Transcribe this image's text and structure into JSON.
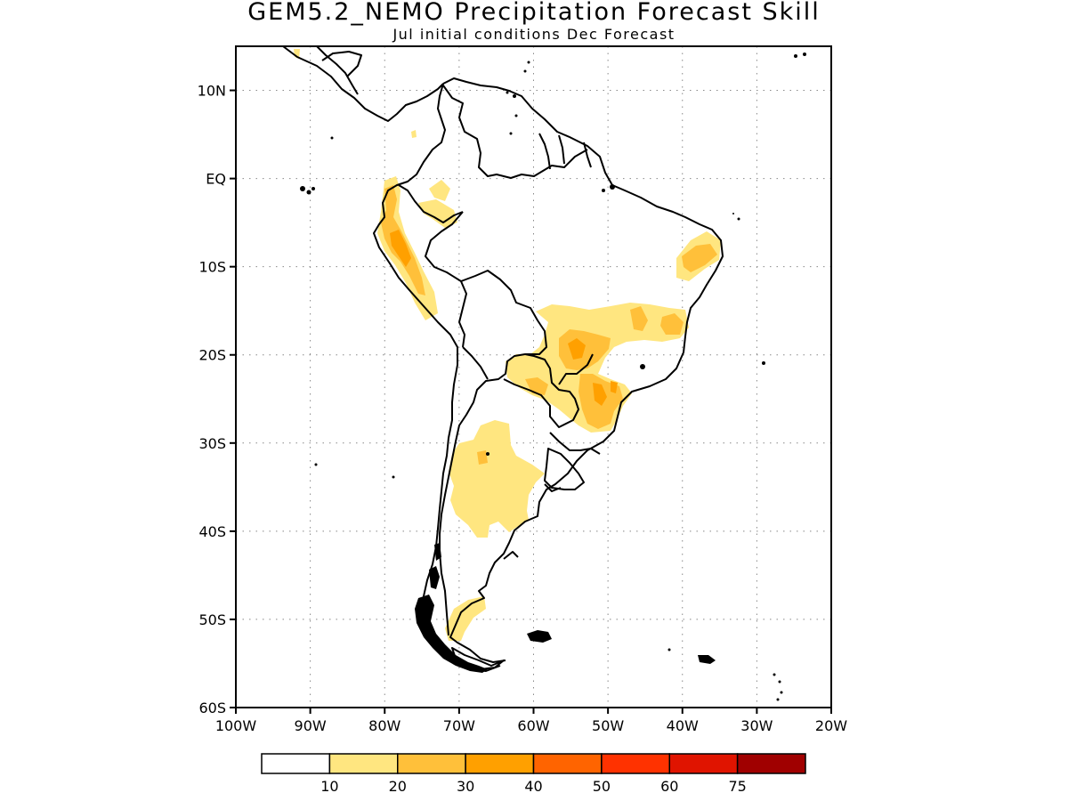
{
  "title": "GEM5.2_NEMO Precipitation Forecast Skill",
  "subtitle": "Jul initial conditions   Dec Forecast",
  "map": {
    "lon_range": [
      -100,
      -20
    ],
    "lat_range": [
      -60,
      15
    ],
    "grid": "dotted",
    "y_ticks": [
      {
        "value": 10,
        "label": "10N"
      },
      {
        "value": 0,
        "label": "EQ"
      },
      {
        "value": -10,
        "label": "10S"
      },
      {
        "value": -20,
        "label": "20S"
      },
      {
        "value": -30,
        "label": "30S"
      },
      {
        "value": -40,
        "label": "40S"
      },
      {
        "value": -50,
        "label": "50S"
      },
      {
        "value": -60,
        "label": "60S"
      }
    ],
    "x_ticks": [
      {
        "value": -100,
        "label": "100W"
      },
      {
        "value": -90,
        "label": "90W"
      },
      {
        "value": -80,
        "label": "80W"
      },
      {
        "value": -70,
        "label": "70W"
      },
      {
        "value": -60,
        "label": "60W"
      },
      {
        "value": -50,
        "label": "50W"
      },
      {
        "value": -40,
        "label": "40W"
      },
      {
        "value": -30,
        "label": "30W"
      },
      {
        "value": -20,
        "label": "20W"
      }
    ]
  },
  "colorbar": {
    "colors": [
      "#ffffff",
      "#ffe680",
      "#ffc03a",
      "#ffa000",
      "#ff6400",
      "#ff3200",
      "#e01400",
      "#a00000"
    ],
    "labels": [
      "10",
      "20",
      "30",
      "40",
      "50",
      "60",
      "75"
    ]
  }
}
